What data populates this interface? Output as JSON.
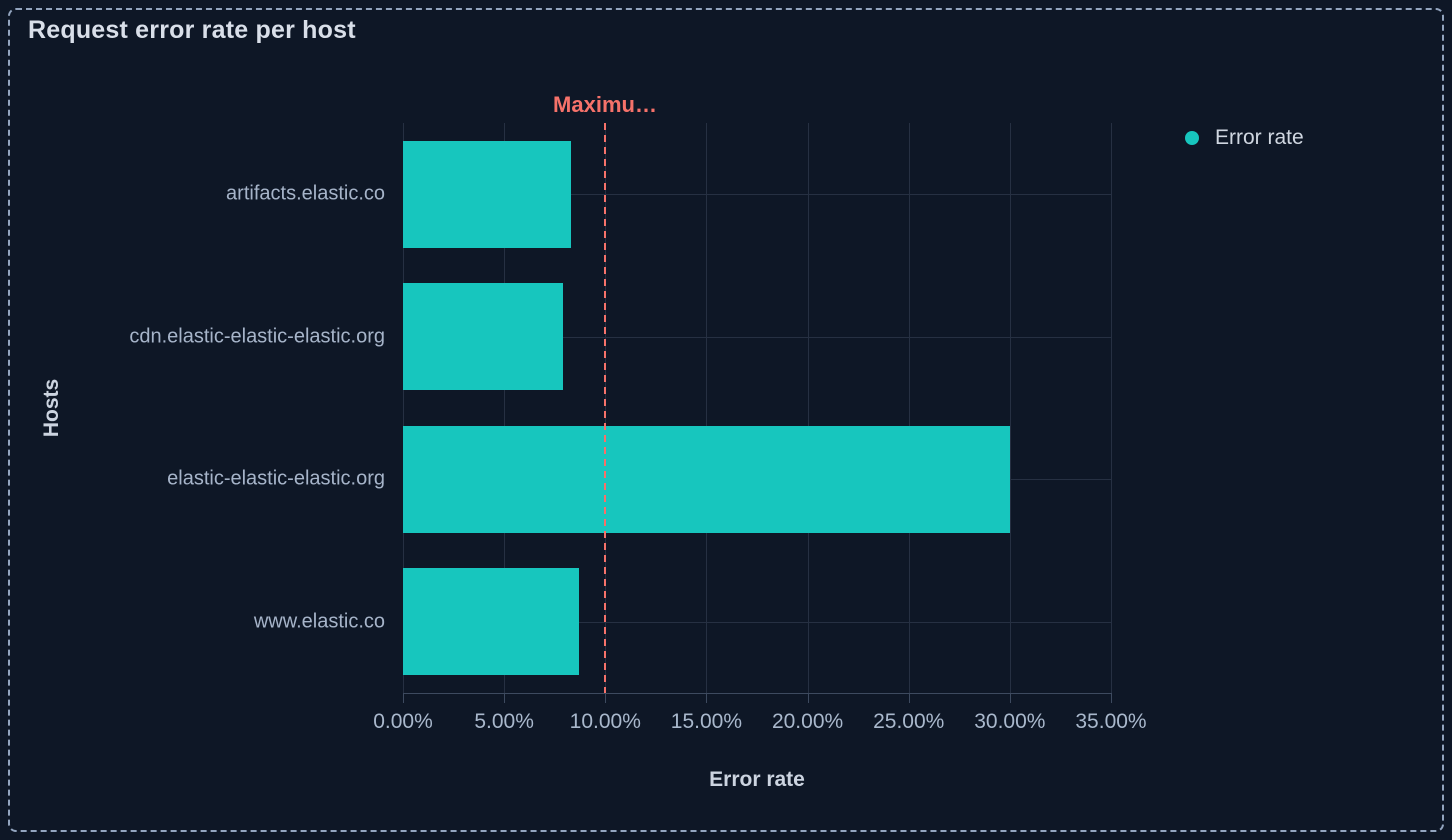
{
  "panel": {
    "selected_border_style": "dashed"
  },
  "colors": {
    "background": "#0e1726",
    "panel_border": "#93a5bf",
    "bar": "#17c6be",
    "reference_line": "#f6726a",
    "grid_line": "#263042",
    "axis_line": "#3d4a5f",
    "title_text": "#d9dfe9",
    "x_tick_text": "#a9b8cc",
    "y_tick_text": "#a6b4c9",
    "legend_text": "#d0d7e1"
  },
  "legend": {
    "position": "right",
    "items": [
      {
        "label": "Error rate",
        "color": "#17c6be"
      }
    ]
  },
  "chart_data": {
    "type": "bar",
    "orientation": "horizontal",
    "title": "Request error rate per host",
    "categories": [
      "artifacts.elastic.co",
      "cdn.elastic-elastic-elastic.org",
      "elastic-elastic-elastic.org",
      "www.elastic.co"
    ],
    "series": [
      {
        "name": "Error rate",
        "values": [
          8.3,
          7.9,
          30,
          8.7
        ],
        "unit": "%"
      }
    ],
    "xlabel": "Error rate",
    "ylabel": "Hosts",
    "x_ticks": [
      "0.00%",
      "5.00%",
      "10.00%",
      "15.00%",
      "20.00%",
      "25.00%",
      "30.00%",
      "35.00%"
    ],
    "x_tick_values": [
      0,
      5,
      10,
      15,
      20,
      25,
      30,
      35
    ],
    "xlim": [
      0,
      35
    ],
    "grid": true,
    "legend_position": "right",
    "reference_line": {
      "label": "Maximu…",
      "value": 10,
      "style": "dashed",
      "color": "#f6726a"
    }
  }
}
